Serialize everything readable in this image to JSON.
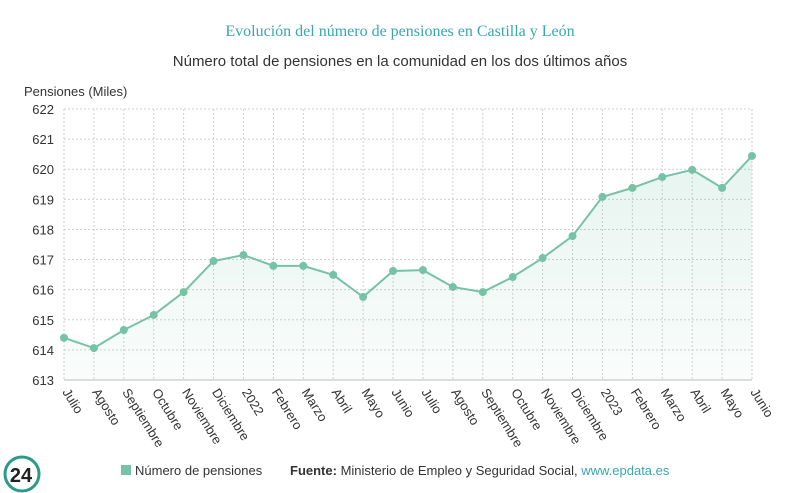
{
  "chart_data": {
    "type": "line",
    "title": "Evolución del número de pensiones en Castilla y León",
    "subtitle": "Número total de pensiones en la comunidad en los dos últimos años",
    "y_label": "Pensiones (Miles)",
    "categories": [
      "Julio",
      "Agosto",
      "Septiembre",
      "Octubre",
      "Noviembre",
      "Diciembre",
      "2022",
      "Febrero",
      "Marzo",
      "Abril",
      "Mayo",
      "Junio",
      "Julio",
      "Agosto",
      "Septiembre",
      "Octubre",
      "Noviembre",
      "Diciembre",
      "2023",
      "Febrero",
      "Marzo",
      "Abril",
      "Mayo",
      "Junio"
    ],
    "series": [
      {
        "name": "Número de pensiones",
        "color": "#76c2a6",
        "values": [
          614.4,
          614.06,
          614.66,
          615.16,
          615.92,
          616.95,
          617.15,
          616.79,
          616.79,
          616.49,
          615.76,
          616.62,
          616.65,
          616.09,
          615.92,
          616.42,
          617.05,
          617.78,
          619.08,
          619.38,
          619.74,
          619.98,
          619.38,
          620.44
        ]
      }
    ],
    "ylim": [
      613,
      622
    ],
    "yticks": [
      613,
      614,
      615,
      616,
      617,
      618,
      619,
      620,
      621,
      622
    ],
    "grid": true,
    "source": {
      "label": "Fuente:",
      "text": "Ministerio de Empleo y Seguridad Social,",
      "link": "www.epdata.es"
    },
    "logo": "24"
  }
}
